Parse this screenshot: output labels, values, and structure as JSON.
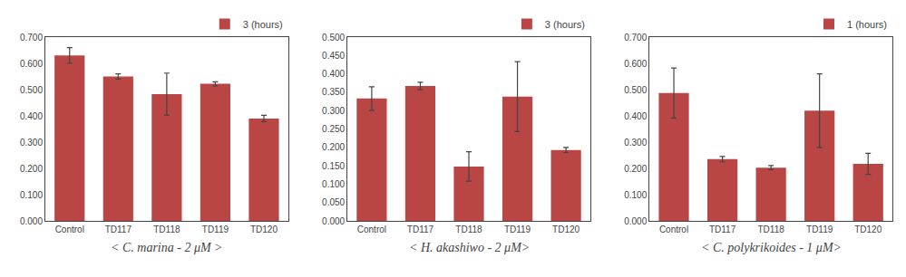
{
  "chart_data": [
    {
      "type": "bar",
      "title": "< C. marina - 2 μM >",
      "categories": [
        "Control",
        "TD117",
        "TD118",
        "TD119",
        "TD120"
      ],
      "series": [
        {
          "name": "3 (hours)",
          "color": "#b94545",
          "values": [
            0.63,
            0.55,
            0.483,
            0.522,
            0.39
          ],
          "errors": [
            0.03,
            0.01,
            0.08,
            0.008,
            0.012
          ]
        }
      ],
      "ylim": [
        0.0,
        0.7
      ],
      "yticks": [
        {
          "value": 0.0,
          "label": "0.000"
        },
        {
          "value": 0.1,
          "label": "0.100"
        },
        {
          "value": 0.2,
          "label": "0.200"
        },
        {
          "value": 0.3,
          "label": "0.300"
        },
        {
          "value": 0.4,
          "label": "0.400"
        },
        {
          "value": 0.5,
          "label": "0.500"
        },
        {
          "value": 0.6,
          "label": "0.600"
        },
        {
          "value": 0.7,
          "label": "0.700"
        }
      ],
      "grid": false,
      "legend": "upper right"
    },
    {
      "type": "bar",
      "title": "< H. akashiwo - 2 μM>",
      "categories": [
        "Control",
        "TD117",
        "TD118",
        "TD119",
        "TD120"
      ],
      "series": [
        {
          "name": "3 (hours)",
          "color": "#b94545",
          "values": [
            0.333,
            0.367,
            0.148,
            0.338,
            0.193
          ],
          "errors": [
            0.032,
            0.01,
            0.04,
            0.095,
            0.007
          ]
        }
      ],
      "ylim": [
        0.0,
        0.5
      ],
      "yticks": [
        {
          "value": 0.0,
          "label": "0.000"
        },
        {
          "value": 0.05,
          "label": "0.050"
        },
        {
          "value": 0.1,
          "label": "0.100"
        },
        {
          "value": 0.15,
          "label": "0.150"
        },
        {
          "value": 0.2,
          "label": "0.200"
        },
        {
          "value": 0.25,
          "label": "0.250"
        },
        {
          "value": 0.3,
          "label": "0.300"
        },
        {
          "value": 0.35,
          "label": "0.350"
        },
        {
          "value": 0.4,
          "label": "0.400"
        },
        {
          "value": 0.45,
          "label": "0.450"
        },
        {
          "value": 0.5,
          "label": "0.500"
        }
      ],
      "grid": false,
      "legend": "upper right"
    },
    {
      "type": "bar",
      "title": "< C. polykrikoides - 1 μM>",
      "categories": [
        "Control",
        "TD117",
        "TD118",
        "TD119",
        "TD120"
      ],
      "series": [
        {
          "name": "1 (hours)",
          "color": "#b94545",
          "values": [
            0.487,
            0.235,
            0.203,
            0.42,
            0.217
          ],
          "errors": [
            0.095,
            0.01,
            0.008,
            0.14,
            0.04
          ]
        }
      ],
      "ylim": [
        0.0,
        0.7
      ],
      "yticks": [
        {
          "value": 0.0,
          "label": "0.000"
        },
        {
          "value": 0.1,
          "label": "0.100"
        },
        {
          "value": 0.2,
          "label": "0.200"
        },
        {
          "value": 0.3,
          "label": "0.300"
        },
        {
          "value": 0.4,
          "label": "0.400"
        },
        {
          "value": 0.5,
          "label": "0.500"
        },
        {
          "value": 0.6,
          "label": "0.600"
        },
        {
          "value": 0.7,
          "label": "0.700"
        }
      ],
      "grid": false,
      "legend": "upper right"
    }
  ]
}
